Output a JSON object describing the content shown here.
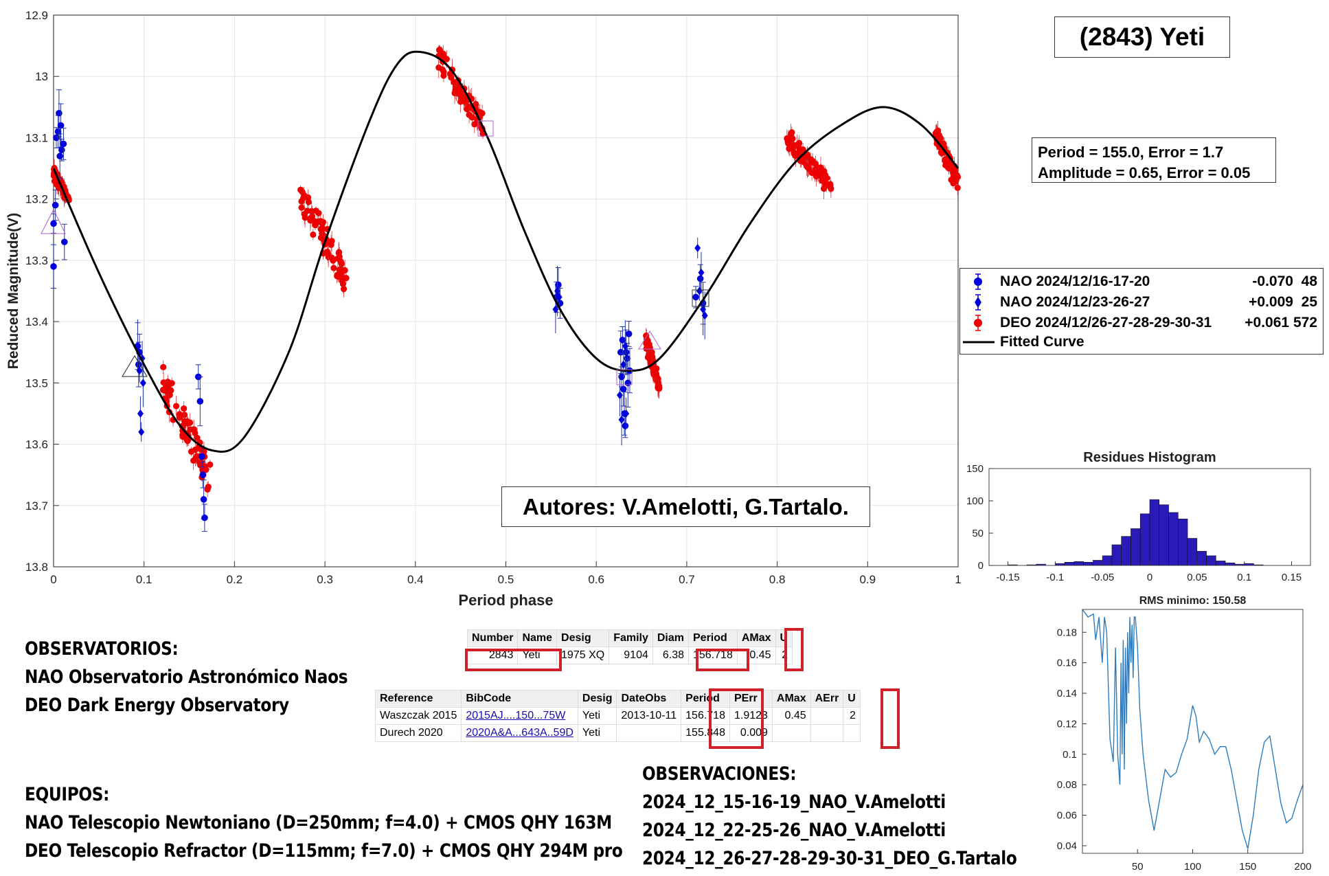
{
  "title": "(2843) Yeti",
  "fit_params": {
    "line1": "Period =  155.0, Error = 1.7",
    "line2": "Amplitude = 0.65, Error =   0.05"
  },
  "authors": "Autores: V.Amelotti, G.Tartalo.",
  "legend": [
    {
      "label": "NAO 2024/12/16-17-20",
      "offset": "-0.070",
      "count": "48",
      "marker": "circle",
      "color": "#0000dd"
    },
    {
      "label": "NAO 2024/12/23-26-27",
      "offset": "+0.009",
      "count": "25",
      "marker": "diamond",
      "color": "#0000dd"
    },
    {
      "label": "DEO 2024/12/26-27-28-29-30-31",
      "offset": "+0.061",
      "count": "572",
      "marker": "circle",
      "color": "#ee0000"
    },
    {
      "label": "Fitted Curve",
      "offset": "",
      "count": "",
      "marker": "line",
      "color": "#000000"
    }
  ],
  "chart_data": [
    {
      "type": "scatter",
      "xlabel": "Period phase",
      "ylabel": "Reduced Magnitude(V)",
      "xlim": [
        0,
        1
      ],
      "ylim": [
        12.9,
        13.8
      ],
      "y_reversed": true,
      "xticks": [
        "0",
        "0.1",
        "0.2",
        "0.3",
        "0.4",
        "0.5",
        "0.6",
        "0.7",
        "0.8",
        "0.9",
        "1"
      ],
      "yticks": [
        "12.9",
        "13",
        "13.1",
        "13.2",
        "13.3",
        "13.4",
        "13.5",
        "13.6",
        "13.7",
        "13.8"
      ],
      "grid": true,
      "fit_curve": {
        "name": "Fitted Curve",
        "points": [
          [
            0,
            13.15
          ],
          [
            0.05,
            13.32
          ],
          [
            0.1,
            13.47
          ],
          [
            0.14,
            13.57
          ],
          [
            0.175,
            13.61
          ],
          [
            0.21,
            13.59
          ],
          [
            0.26,
            13.45
          ],
          [
            0.3,
            13.27
          ],
          [
            0.35,
            13.07
          ],
          [
            0.38,
            12.98
          ],
          [
            0.405,
            12.96
          ],
          [
            0.44,
            12.99
          ],
          [
            0.48,
            13.1
          ],
          [
            0.52,
            13.25
          ],
          [
            0.56,
            13.38
          ],
          [
            0.6,
            13.46
          ],
          [
            0.635,
            13.48
          ],
          [
            0.67,
            13.46
          ],
          [
            0.72,
            13.36
          ],
          [
            0.77,
            13.24
          ],
          [
            0.82,
            13.14
          ],
          [
            0.87,
            13.08
          ],
          [
            0.917,
            13.05
          ],
          [
            0.96,
            13.08
          ],
          [
            1,
            13.15
          ]
        ]
      },
      "series": [
        {
          "name": "NAO 2024/12/16-17-20",
          "marker": "circle",
          "color": "#0000dd",
          "points": [
            [
              0.0,
              13.31
            ],
            [
              0.0,
              13.24
            ],
            [
              0.002,
              13.21
            ],
            [
              0.003,
              13.1
            ],
            [
              0.005,
              13.09
            ],
            [
              0.006,
              13.06
            ],
            [
              0.007,
              13.13
            ],
            [
              0.008,
              13.08
            ],
            [
              0.009,
              13.12
            ],
            [
              0.011,
              13.11
            ],
            [
              0.012,
              13.27
            ],
            [
              0.093,
              13.44
            ],
            [
              0.094,
              13.47
            ],
            [
              0.095,
              13.45
            ],
            [
              0.16,
              13.49
            ],
            [
              0.162,
              13.53
            ],
            [
              0.164,
              13.62
            ],
            [
              0.165,
              13.65
            ],
            [
              0.166,
              13.69
            ],
            [
              0.167,
              13.72
            ],
            [
              0.556,
              13.36
            ],
            [
              0.558,
              13.34
            ],
            [
              0.56,
              13.37
            ],
            [
              0.627,
              13.45
            ],
            [
              0.628,
              13.49
            ],
            [
              0.629,
              13.43
            ],
            [
              0.63,
              13.51
            ],
            [
              0.631,
              13.55
            ],
            [
              0.632,
              13.57
            ],
            [
              0.633,
              13.45
            ],
            [
              0.634,
              13.46
            ],
            [
              0.635,
              13.5
            ],
            [
              0.636,
              13.42
            ],
            [
              0.637,
              13.48
            ],
            [
              0.71,
              13.36
            ],
            [
              0.715,
              13.33
            ],
            [
              0.718,
              13.37
            ]
          ]
        },
        {
          "name": "NAO 2024/12/23-26-27",
          "marker": "diamond",
          "color": "#0000dd",
          "points": [
            [
              0.093,
              13.44
            ],
            [
              0.095,
              13.48
            ],
            [
              0.096,
              13.55
            ],
            [
              0.097,
              13.58
            ],
            [
              0.098,
              13.46
            ],
            [
              0.099,
              13.5
            ],
            [
              0.555,
              13.38
            ],
            [
              0.557,
              13.35
            ],
            [
              0.559,
              13.36
            ],
            [
              0.626,
              13.52
            ],
            [
              0.628,
              13.56
            ],
            [
              0.63,
              13.47
            ],
            [
              0.632,
              13.44
            ],
            [
              0.633,
              13.55
            ],
            [
              0.712,
              13.28
            ],
            [
              0.714,
              13.35
            ],
            [
              0.716,
              13.32
            ],
            [
              0.718,
              13.38
            ],
            [
              0.72,
              13.39
            ]
          ]
        },
        {
          "name": "DEO 2024/12/26-27-28-29-30-31",
          "marker": "circle",
          "color": "#ee0000",
          "clusters": [
            {
              "x": [
                0.0,
                0.017
              ],
              "y": [
                13.15,
                13.21
              ]
            },
            {
              "x": [
                0.12,
                0.175
              ],
              "y": [
                13.47,
                13.69
              ]
            },
            {
              "x": [
                0.273,
                0.325
              ],
              "y": [
                13.17,
                13.36
              ]
            },
            {
              "x": [
                0.425,
                0.475
              ],
              "y": [
                12.95,
                13.1
              ]
            },
            {
              "x": [
                0.655,
                0.67
              ],
              "y": [
                13.42,
                13.52
              ]
            },
            {
              "x": [
                0.81,
                0.86
              ],
              "y": [
                13.08,
                13.2
              ]
            },
            {
              "x": [
                0.975,
                1.0
              ],
              "y": [
                13.08,
                13.19
              ]
            }
          ]
        }
      ]
    },
    {
      "type": "bar",
      "title": "Residues Histogram",
      "xlim": [
        -0.17,
        0.17
      ],
      "ylim": [
        0,
        150
      ],
      "xticks": [
        "-0.15",
        "-0.1",
        "-0.05",
        "0",
        "0.05",
        "0.1",
        "0.15"
      ],
      "yticks": [
        "0",
        "50",
        "100",
        "150"
      ],
      "color": "#2a1ab8",
      "bin_centers": [
        -0.155,
        -0.145,
        -0.135,
        -0.125,
        -0.115,
        -0.105,
        -0.095,
        -0.085,
        -0.075,
        -0.065,
        -0.055,
        -0.045,
        -0.035,
        -0.025,
        -0.015,
        -0.005,
        0.005,
        0.015,
        0.025,
        0.035,
        0.045,
        0.055,
        0.065,
        0.075,
        0.085,
        0.095,
        0.105,
        0.115,
        0.125
      ],
      "values": [
        0,
        1,
        0,
        1,
        2,
        0,
        3,
        5,
        6,
        5,
        8,
        15,
        32,
        45,
        57,
        80,
        102,
        94,
        82,
        72,
        42,
        22,
        15,
        7,
        4,
        2,
        3,
        1,
        0
      ]
    },
    {
      "type": "line",
      "title": "RMS minimo: 150.58",
      "xlim": [
        0,
        200
      ],
      "ylim": [
        0.035,
        0.195
      ],
      "xticks": [
        "50",
        "100",
        "150",
        "200"
      ],
      "yticks": [
        "0.04",
        "0.06",
        "0.08",
        "0.1",
        "0.12",
        "0.14",
        "0.16",
        "0.18"
      ],
      "color": "#2b7bbf",
      "x": [
        0,
        5,
        10,
        12,
        15,
        18,
        20,
        22,
        25,
        28,
        30,
        32,
        34,
        35,
        36,
        37,
        38,
        39,
        40,
        41,
        42,
        43,
        44,
        45,
        46,
        47,
        48,
        50,
        52,
        55,
        60,
        65,
        70,
        75,
        80,
        85,
        90,
        95,
        100,
        103,
        106,
        110,
        115,
        120,
        125,
        130,
        135,
        140,
        145,
        150,
        155,
        160,
        165,
        170,
        175,
        180,
        185,
        190,
        195,
        200
      ],
      "y": [
        0.195,
        0.19,
        0.192,
        0.175,
        0.19,
        0.16,
        0.19,
        0.18,
        0.11,
        0.095,
        0.17,
        0.1,
        0.08,
        0.16,
        0.1,
        0.175,
        0.09,
        0.17,
        0.12,
        0.18,
        0.14,
        0.19,
        0.16,
        0.185,
        0.15,
        0.19,
        0.19,
        0.17,
        0.13,
        0.1,
        0.07,
        0.05,
        0.07,
        0.09,
        0.085,
        0.088,
        0.1,
        0.11,
        0.132,
        0.125,
        0.108,
        0.115,
        0.11,
        0.1,
        0.105,
        0.105,
        0.09,
        0.07,
        0.05,
        0.038,
        0.06,
        0.09,
        0.108,
        0.112,
        0.09,
        0.068,
        0.055,
        0.058,
        0.07,
        0.08
      ]
    }
  ],
  "table1": {
    "headers": [
      "Number",
      "Name",
      "Desig",
      "Family",
      "Diam",
      "Period",
      "AMax",
      "U"
    ],
    "row": [
      "2843",
      "Yeti",
      "1975 XQ",
      "9104",
      "6.38",
      "156.718",
      "0.45",
      "2"
    ]
  },
  "table2": {
    "headers": [
      "Reference",
      "BibCode",
      "Desig",
      "DateObs",
      "Period",
      "PErr",
      "AMax",
      "AErr",
      "U"
    ],
    "rows": [
      [
        "Waszczak 2015",
        "2015AJ....150...75W",
        "Yeti",
        "2013-10-11",
        "156.718",
        "1.9123",
        "0.45",
        "",
        "2"
      ],
      [
        "Durech 2020",
        "2020A&A...643A..59D",
        "Yeti",
        "",
        "155.848",
        "0.009",
        "",
        "",
        ""
      ]
    ]
  },
  "observatorios": {
    "heading": "OBSERVATORIOS:",
    "lines": [
      "NAO Observatorio Astronómico Naos",
      "DEO Dark Energy Observatory"
    ]
  },
  "equipos": {
    "heading": "EQUIPOS:",
    "lines": [
      "NAO Telescopio Newtoniano (D=250mm; f=4.0) + CMOS QHY 163M",
      "DEO Telescopio Refractor (D=115mm; f=7.0) + CMOS QHY 294M pro"
    ]
  },
  "observaciones": {
    "heading": "OBSERVACIONES:",
    "lines": [
      "2024_12_15-16-19_NAO_V.Amelotti",
      "2024_12_22-25-26_NAO_V.Amelotti",
      "2024_12_26-27-28-29-30-31_DEO_G.Tartalo"
    ]
  }
}
